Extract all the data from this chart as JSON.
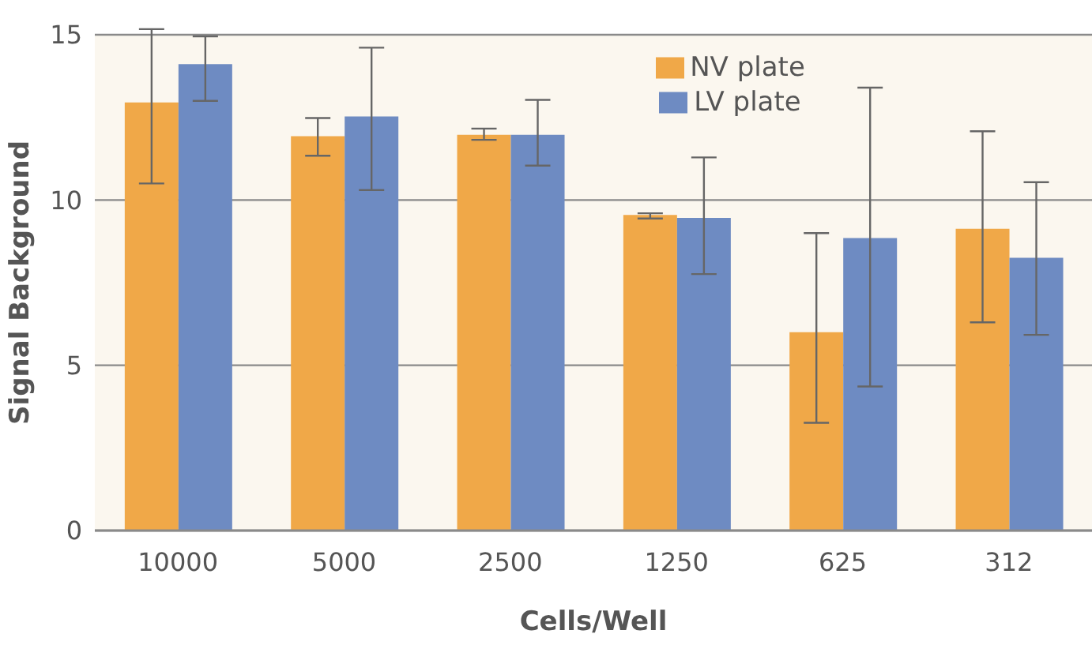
{
  "chart_data": {
    "type": "bar",
    "xlabel": "Cells/Well",
    "ylabel": "Signal Background",
    "categories": [
      "10000",
      "5000",
      "2500",
      "1250",
      "625",
      "312"
    ],
    "series": [
      {
        "name": "NV plate",
        "color": "#f0a848",
        "values": [
          12.95,
          11.93,
          11.97,
          9.55,
          6.0,
          9.13
        ],
        "errors": [
          [
            10.5,
            15.17
          ],
          [
            11.34,
            12.48
          ],
          [
            11.82,
            12.16
          ],
          [
            9.44,
            9.6
          ],
          [
            3.26,
            9.0
          ],
          [
            6.3,
            12.08
          ]
        ]
      },
      {
        "name": "LV plate",
        "color": "#6e8bc2",
        "values": [
          14.11,
          12.53,
          11.97,
          9.46,
          8.85,
          8.25
        ],
        "errors": [
          [
            13.0,
            14.95
          ],
          [
            10.3,
            14.61
          ],
          [
            11.04,
            13.03
          ],
          [
            7.76,
            11.29
          ],
          [
            4.36,
            13.4
          ],
          [
            5.92,
            10.54
          ]
        ]
      }
    ],
    "ylim": [
      0,
      15
    ],
    "yticks": [
      0,
      5,
      10,
      15
    ],
    "grid": "y",
    "legend": "top right"
  }
}
